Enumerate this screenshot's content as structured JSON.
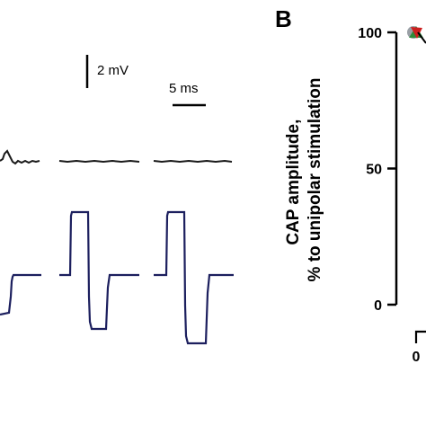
{
  "panel_b": {
    "letter": "B",
    "ylabel_line1": "CAP amplitude,",
    "ylabel_line2": "% to unipolar stimulation",
    "x_tick_first": "0"
  },
  "scale_bars": {
    "voltage": "2 mV",
    "time": "5 ms"
  },
  "colors": {
    "trace_black": "#1a1a1a",
    "trace_navy": "#1c1f5e",
    "marker_red": "#cc1f1f",
    "marker_green": "#2e8b3a",
    "marker_gray": "#9aa0a6"
  },
  "chart_data": {
    "type": "scatter",
    "ylim": [
      0,
      100
    ],
    "yticks": [
      0,
      50,
      100
    ],
    "series": [
      {
        "x": [
          0
        ],
        "values": [
          100
        ]
      }
    ]
  }
}
